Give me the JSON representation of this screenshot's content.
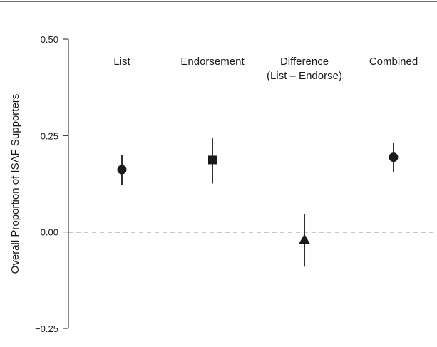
{
  "chart_data": {
    "type": "scatter",
    "ylabel": "Overall Proportion of ISAF Supporters",
    "ylim": [
      -0.25,
      0.5
    ],
    "yticks": [
      {
        "value": 0.5,
        "label": "0.50"
      },
      {
        "value": 0.25,
        "label": "0.25"
      },
      {
        "value": 0.0,
        "label": "0.00"
      },
      {
        "value": -0.25,
        "label": "−0.25"
      }
    ],
    "reference_line": {
      "value": 0.0,
      "style": "dashed"
    },
    "grid": false,
    "categories": [
      {
        "lines": [
          "List"
        ],
        "estimate": 0.162,
        "lower": 0.122,
        "upper": 0.2,
        "marker": "circle"
      },
      {
        "lines": [
          "Endorsement"
        ],
        "estimate": 0.187,
        "lower": 0.126,
        "upper": 0.243,
        "marker": "square"
      },
      {
        "lines": [
          "Difference",
          "(List – Endorse)"
        ],
        "estimate": -0.02,
        "lower": -0.09,
        "upper": 0.046,
        "marker": "triangle"
      },
      {
        "lines": [
          "Combined"
        ],
        "estimate": 0.194,
        "lower": 0.156,
        "upper": 0.232,
        "marker": "circle"
      }
    ],
    "colors": {
      "ink": "#1a1a1a"
    }
  }
}
